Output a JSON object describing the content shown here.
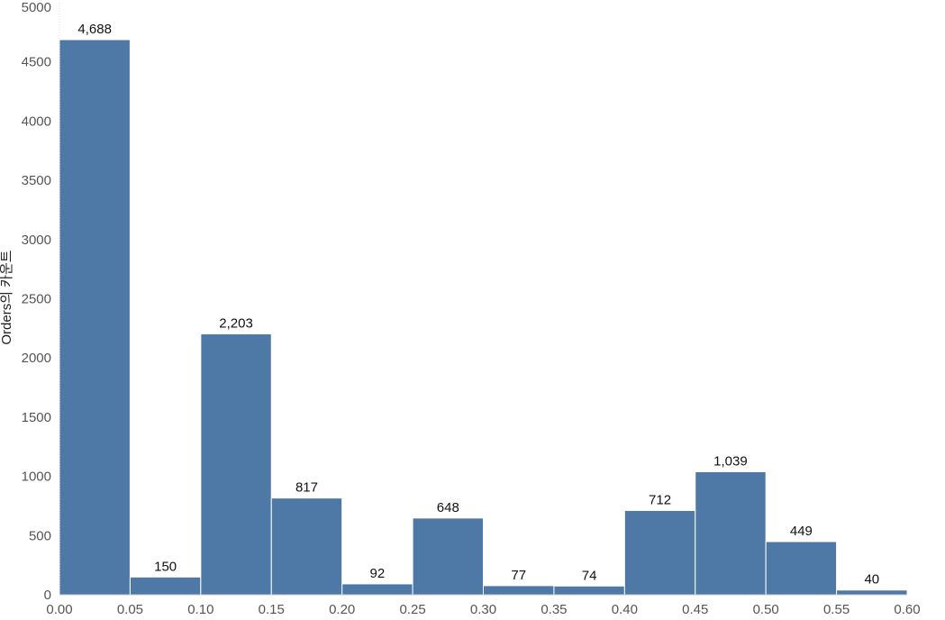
{
  "chart_data": {
    "type": "bar",
    "title": "",
    "xlabel": "",
    "ylabel": "Orders의 카운트",
    "bins": [
      {
        "from": 0.0,
        "to": 0.05,
        "value": 4688,
        "label": "4,688"
      },
      {
        "from": 0.05,
        "to": 0.1,
        "value": 150,
        "label": "150"
      },
      {
        "from": 0.1,
        "to": 0.15,
        "value": 2203,
        "label": "2,203"
      },
      {
        "from": 0.15,
        "to": 0.2,
        "value": 817,
        "label": "817"
      },
      {
        "from": 0.2,
        "to": 0.25,
        "value": 92,
        "label": "92"
      },
      {
        "from": 0.25,
        "to": 0.3,
        "value": 648,
        "label": "648"
      },
      {
        "from": 0.3,
        "to": 0.35,
        "value": 77,
        "label": "77"
      },
      {
        "from": 0.35,
        "to": 0.4,
        "value": 74,
        "label": "74"
      },
      {
        "from": 0.4,
        "to": 0.45,
        "value": 712,
        "label": "712"
      },
      {
        "from": 0.45,
        "to": 0.5,
        "value": 1039,
        "label": "1,039"
      },
      {
        "from": 0.5,
        "to": 0.55,
        "value": 449,
        "label": "449"
      },
      {
        "from": 0.55,
        "to": 0.6,
        "value": 40,
        "label": "40"
      }
    ],
    "xticks": [
      "0.00",
      "0.05",
      "0.10",
      "0.15",
      "0.20",
      "0.25",
      "0.30",
      "0.35",
      "0.40",
      "0.45",
      "0.50",
      "0.55",
      "0.60"
    ],
    "yticks": [
      "0",
      "500",
      "1000",
      "1500",
      "2000",
      "2500",
      "3000",
      "3500",
      "4000",
      "4500",
      "5000"
    ],
    "xlim": [
      0,
      0.6
    ],
    "ylim": [
      0,
      5000
    ],
    "grid": false,
    "legend": "none",
    "colors": {
      "bar": "#4e79a7",
      "bar_edge": "#ffffff"
    }
  }
}
